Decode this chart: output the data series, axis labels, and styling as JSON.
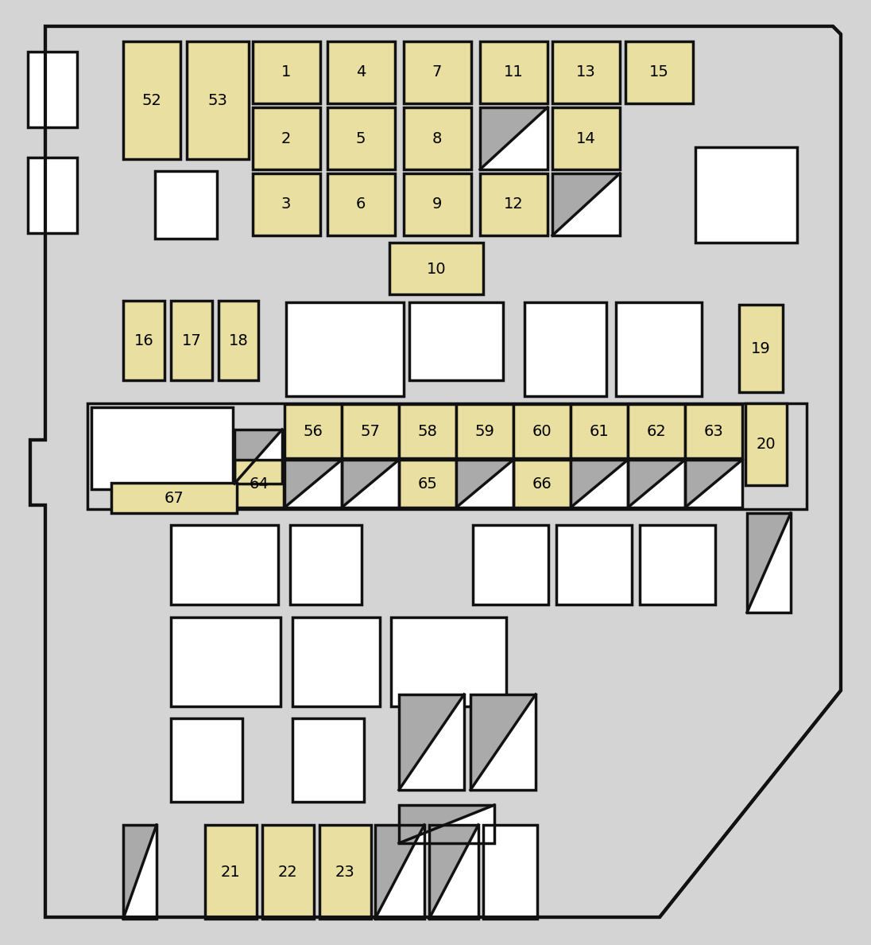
{
  "bg_color": "#d4d4d4",
  "box_bg": "#e8dfa0",
  "white_bg": "#ffffff",
  "gray_bg": "#aaaaaa",
  "border_color": "#111111",
  "line_width": 2.5,
  "font_size": 14,
  "fig_width": 10.96,
  "fig_height": 11.88
}
